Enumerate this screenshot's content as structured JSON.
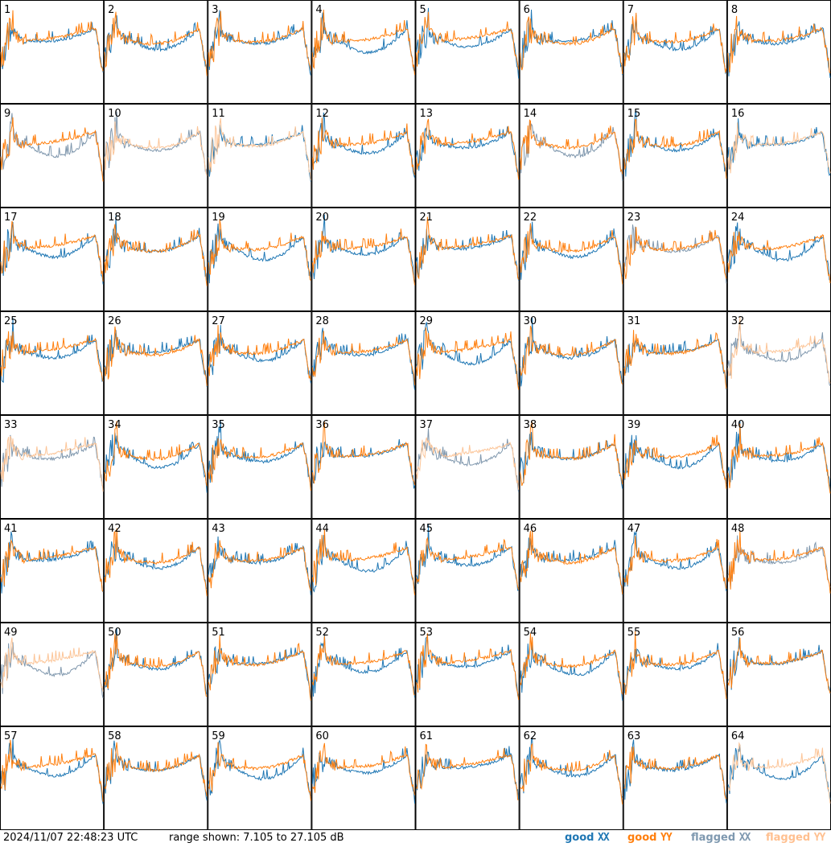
{
  "chart_data": {
    "type": "line",
    "layout": "small-multiples 8x8",
    "panels": [
      "1",
      "2",
      "3",
      "4",
      "5",
      "6",
      "7",
      "8",
      "9",
      "10",
      "11",
      "12",
      "13",
      "14",
      "15",
      "16",
      "17",
      "18",
      "19",
      "20",
      "21",
      "22",
      "23",
      "24",
      "25",
      "26",
      "27",
      "28",
      "29",
      "30",
      "31",
      "32",
      "33",
      "34",
      "35",
      "36",
      "37",
      "38",
      "39",
      "40",
      "41",
      "42",
      "43",
      "44",
      "45",
      "46",
      "47",
      "48",
      "49",
      "50",
      "51",
      "52",
      "53",
      "54",
      "55",
      "56",
      "57",
      "58",
      "59",
      "60",
      "61",
      "62",
      "63",
      "64"
    ],
    "y_units": "dB",
    "ylim": [
      7.105,
      27.105
    ],
    "series_status": {
      "1": [
        "good",
        "good"
      ],
      "2": [
        "good",
        "good"
      ],
      "3": [
        "good",
        "good"
      ],
      "4": [
        "good",
        "good"
      ],
      "5": [
        "good",
        "good"
      ],
      "6": [
        "good",
        "good"
      ],
      "7": [
        "good",
        "good"
      ],
      "8": [
        "good",
        "good"
      ],
      "9": [
        "flagged",
        "good"
      ],
      "10": [
        "flagged",
        "flagged"
      ],
      "11": [
        "good",
        "flagged"
      ],
      "12": [
        "good",
        "good"
      ],
      "13": [
        "good",
        "good"
      ],
      "14": [
        "flagged",
        "good"
      ],
      "15": [
        "good",
        "good"
      ],
      "16": [
        "good",
        "flagged"
      ],
      "32": [
        "flagged",
        "flagged"
      ],
      "33": [
        "flagged",
        "flagged"
      ],
      "37": [
        "flagged",
        "flagged"
      ],
      "48": [
        "flagged",
        "good"
      ],
      "49": [
        "flagged",
        "flagged"
      ],
      "23": [
        "flagged",
        "good"
      ],
      "64": [
        "good",
        "flagged"
      ]
    },
    "legend": [
      "good XX",
      "good YY",
      "flagged XX",
      "flagged YY"
    ],
    "legend_placement": "bottom-right"
  },
  "footer": {
    "timestamp": "2024/11/07 22:48:23 UTC",
    "range_text": "range shown: 7.105 to 27.105 dB",
    "legend": {
      "good_xx": {
        "word": "good",
        "sym": "XX",
        "color": "#1f77b4"
      },
      "good_yy": {
        "word": "good",
        "sym": "YY",
        "color": "#ff7f0e"
      },
      "flagged_xx": {
        "word": "flagged",
        "sym": "XX",
        "color": "#7f99b0"
      },
      "flagged_yy": {
        "word": "flagged",
        "sym": "YY",
        "color": "#ffc090"
      }
    }
  },
  "colors": {
    "good_xx": "#1f77b4",
    "good_yy": "#ff7f0e",
    "flagged_xx": "#7f97ad",
    "flagged_yy": "#fcc598",
    "grid_line": "#000000"
  }
}
